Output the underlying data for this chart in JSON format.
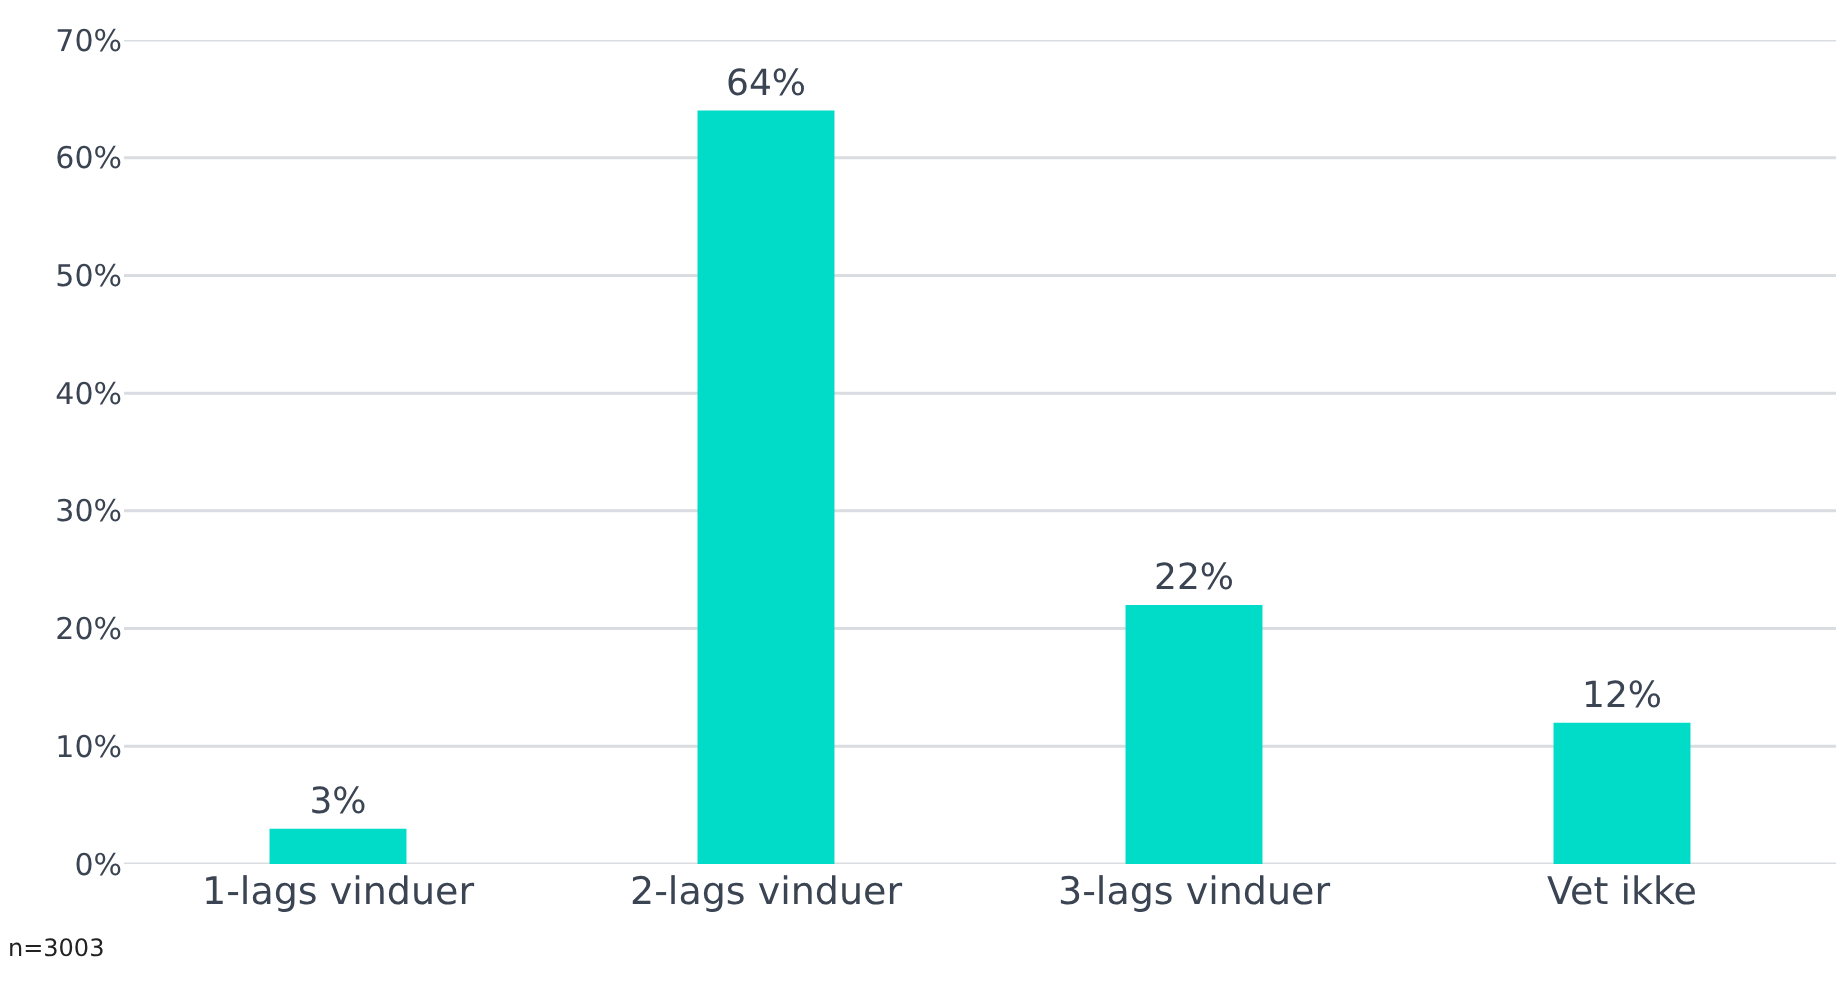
{
  "chart_data": {
    "type": "bar",
    "categories": [
      "1-lags vinduer",
      "2-lags vinduer",
      "3-lags vinduer",
      "Vet ikke"
    ],
    "values": [
      3,
      64,
      22,
      12
    ],
    "value_labels": [
      "3%",
      "64%",
      "22%",
      "12%"
    ],
    "color": "#00dcc8",
    "ylim": [
      0,
      70
    ],
    "yticks": [
      {
        "value": 0,
        "label": "0%"
      },
      {
        "value": 10,
        "label": "10%"
      },
      {
        "value": 20,
        "label": "20%"
      },
      {
        "value": 30,
        "label": "30%"
      },
      {
        "value": 40,
        "label": "40%"
      },
      {
        "value": 50,
        "label": "50%"
      },
      {
        "value": 60,
        "label": "60%"
      },
      {
        "value": 70,
        "label": "70%"
      }
    ],
    "grid": "y",
    "annotations": [
      "n=3003"
    ]
  }
}
